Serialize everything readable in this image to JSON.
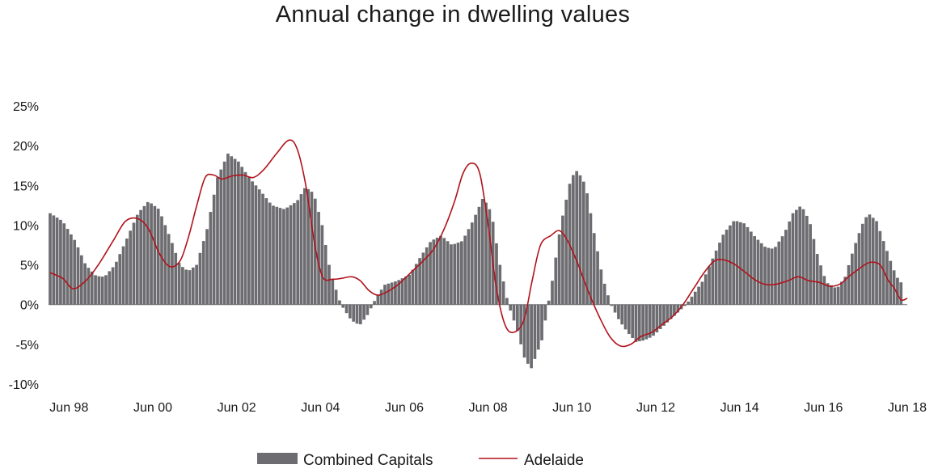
{
  "chart_data": {
    "type": "bar",
    "title": "Annual change in dwelling values",
    "xlabel": "",
    "ylabel": "",
    "ylim": [
      -10,
      25
    ],
    "y_ticks": [
      "25%",
      "20%",
      "15%",
      "10%",
      "5%",
      "0%",
      "-5%",
      "-10%"
    ],
    "y_tick_values": [
      25,
      20,
      15,
      10,
      5,
      0,
      -5,
      -10
    ],
    "x_ticks": [
      "Jun 98",
      "Jun 00",
      "Jun 02",
      "Jun 04",
      "Jun 06",
      "Jun 08",
      "Jun 10",
      "Jun 12",
      "Jun 14",
      "Jun 16",
      "Jun 18"
    ],
    "x_tick_years": [
      1998,
      2000,
      2002,
      2004,
      2006,
      2008,
      2010,
      2012,
      2014,
      2016,
      2018
    ],
    "grid": false,
    "legend_position": "bottom",
    "colors": {
      "bars": "#6d6d71",
      "line": "#b1121b"
    },
    "series": [
      {
        "name": "Combined Capitals",
        "type": "bar",
        "points": [
          [
            1998.0,
            11.5
          ],
          [
            1998.3,
            10.5
          ],
          [
            1998.6,
            8.0
          ],
          [
            1998.85,
            5.0
          ],
          [
            1999.1,
            3.6
          ],
          [
            1999.3,
            3.5
          ],
          [
            1999.55,
            5.0
          ],
          [
            1999.85,
            8.5
          ],
          [
            2000.1,
            11.5
          ],
          [
            2000.35,
            13.0
          ],
          [
            2000.6,
            12.0
          ],
          [
            2000.9,
            8.0
          ],
          [
            2001.1,
            5.0
          ],
          [
            2001.3,
            4.2
          ],
          [
            2001.5,
            5.0
          ],
          [
            2001.75,
            9.5
          ],
          [
            2002.0,
            16.0
          ],
          [
            2002.25,
            19.0
          ],
          [
            2002.5,
            18.0
          ],
          [
            2002.75,
            16.0
          ],
          [
            2003.0,
            14.5
          ],
          [
            2003.3,
            12.5
          ],
          [
            2003.6,
            12.0
          ],
          [
            2003.9,
            13.0
          ],
          [
            2004.1,
            14.8
          ],
          [
            2004.3,
            14.0
          ],
          [
            2004.5,
            10.0
          ],
          [
            2004.7,
            4.0
          ],
          [
            2004.95,
            0.0
          ],
          [
            2005.2,
            -2.0
          ],
          [
            2005.4,
            -2.6
          ],
          [
            2005.6,
            -1.2
          ],
          [
            2005.8,
            1.0
          ],
          [
            2006.0,
            2.5
          ],
          [
            2006.3,
            3.0
          ],
          [
            2006.6,
            3.8
          ],
          [
            2006.85,
            6.0
          ],
          [
            2007.1,
            8.0
          ],
          [
            2007.35,
            8.7
          ],
          [
            2007.6,
            7.5
          ],
          [
            2007.85,
            8.0
          ],
          [
            2008.1,
            10.5
          ],
          [
            2008.35,
            13.5
          ],
          [
            2008.55,
            11.5
          ],
          [
            2008.75,
            5.0
          ],
          [
            2008.95,
            0.0
          ],
          [
            2009.15,
            -3.0
          ],
          [
            2009.35,
            -7.0
          ],
          [
            2009.5,
            -8.0
          ],
          [
            2009.75,
            -4.5
          ],
          [
            2010.0,
            3.0
          ],
          [
            2010.2,
            10.0
          ],
          [
            2010.45,
            16.0
          ],
          [
            2010.6,
            16.9
          ],
          [
            2010.8,
            15.0
          ],
          [
            2011.0,
            9.0
          ],
          [
            2011.2,
            3.5
          ],
          [
            2011.4,
            0.0
          ],
          [
            2011.6,
            -2.0
          ],
          [
            2011.8,
            -3.5
          ],
          [
            2012.0,
            -4.7
          ],
          [
            2012.2,
            -4.5
          ],
          [
            2012.4,
            -4.0
          ],
          [
            2012.6,
            -3.0
          ],
          [
            2012.8,
            -2.0
          ],
          [
            2013.0,
            -1.0
          ],
          [
            2013.2,
            0.0
          ],
          [
            2013.4,
            1.5
          ],
          [
            2013.6,
            3.0
          ],
          [
            2013.85,
            6.0
          ],
          [
            2014.1,
            9.0
          ],
          [
            2014.35,
            10.6
          ],
          [
            2014.6,
            10.2
          ],
          [
            2014.85,
            8.5
          ],
          [
            2015.1,
            7.2
          ],
          [
            2015.3,
            7.0
          ],
          [
            2015.55,
            9.0
          ],
          [
            2015.75,
            11.5
          ],
          [
            2015.95,
            12.5
          ],
          [
            2016.15,
            10.5
          ],
          [
            2016.35,
            6.0
          ],
          [
            2016.55,
            2.8
          ],
          [
            2016.8,
            2.0
          ],
          [
            2017.0,
            3.5
          ],
          [
            2017.2,
            7.0
          ],
          [
            2017.4,
            10.0
          ],
          [
            2017.55,
            11.5
          ],
          [
            2017.75,
            10.5
          ],
          [
            2017.95,
            7.5
          ],
          [
            2018.15,
            4.5
          ],
          [
            2018.3,
            2.8
          ]
        ]
      },
      {
        "name": "Adelaide",
        "type": "line",
        "points": [
          [
            1998.0,
            4.0
          ],
          [
            1998.3,
            3.3
          ],
          [
            1998.55,
            2.0
          ],
          [
            1998.85,
            3.0
          ],
          [
            1999.15,
            5.0
          ],
          [
            1999.5,
            8.0
          ],
          [
            1999.8,
            10.5
          ],
          [
            2000.1,
            10.8
          ],
          [
            2000.35,
            9.5
          ],
          [
            2000.6,
            6.5
          ],
          [
            2000.85,
            4.8
          ],
          [
            2001.1,
            5.5
          ],
          [
            2001.3,
            8.5
          ],
          [
            2001.5,
            12.5
          ],
          [
            2001.7,
            16.0
          ],
          [
            2001.9,
            16.3
          ],
          [
            2002.1,
            15.8
          ],
          [
            2002.35,
            16.2
          ],
          [
            2002.6,
            16.3
          ],
          [
            2002.85,
            16.0
          ],
          [
            2003.1,
            17.0
          ],
          [
            2003.4,
            19.0
          ],
          [
            2003.7,
            20.7
          ],
          [
            2003.9,
            19.5
          ],
          [
            2004.1,
            15.0
          ],
          [
            2004.3,
            8.0
          ],
          [
            2004.5,
            3.5
          ],
          [
            2004.75,
            3.2
          ],
          [
            2004.95,
            3.3
          ],
          [
            2005.2,
            3.5
          ],
          [
            2005.4,
            3.0
          ],
          [
            2005.6,
            1.8
          ],
          [
            2005.8,
            1.2
          ],
          [
            2006.0,
            1.5
          ],
          [
            2006.3,
            2.5
          ],
          [
            2006.6,
            4.0
          ],
          [
            2006.9,
            5.5
          ],
          [
            2007.15,
            7.0
          ],
          [
            2007.4,
            9.5
          ],
          [
            2007.65,
            13.0
          ],
          [
            2007.85,
            16.5
          ],
          [
            2008.05,
            17.8
          ],
          [
            2008.25,
            16.5
          ],
          [
            2008.45,
            10.0
          ],
          [
            2008.65,
            2.0
          ],
          [
            2008.85,
            -2.5
          ],
          [
            2009.05,
            -3.5
          ],
          [
            2009.3,
            -2.0
          ],
          [
            2009.5,
            3.0
          ],
          [
            2009.7,
            7.5
          ],
          [
            2009.95,
            8.7
          ],
          [
            2010.15,
            9.3
          ],
          [
            2010.35,
            8.0
          ],
          [
            2010.6,
            5.0
          ],
          [
            2010.85,
            1.5
          ],
          [
            2011.1,
            -1.5
          ],
          [
            2011.35,
            -4.0
          ],
          [
            2011.6,
            -5.2
          ],
          [
            2011.85,
            -5.0
          ],
          [
            2012.1,
            -4.0
          ],
          [
            2012.35,
            -3.5
          ],
          [
            2012.6,
            -2.5
          ],
          [
            2012.85,
            -1.5
          ],
          [
            2013.1,
            0.0
          ],
          [
            2013.35,
            2.0
          ],
          [
            2013.6,
            4.0
          ],
          [
            2013.85,
            5.5
          ],
          [
            2014.1,
            5.6
          ],
          [
            2014.35,
            5.0
          ],
          [
            2014.6,
            4.0
          ],
          [
            2014.85,
            3.0
          ],
          [
            2015.1,
            2.5
          ],
          [
            2015.35,
            2.6
          ],
          [
            2015.6,
            3.0
          ],
          [
            2015.85,
            3.5
          ],
          [
            2016.1,
            3.0
          ],
          [
            2016.35,
            2.8
          ],
          [
            2016.6,
            2.3
          ],
          [
            2016.85,
            2.6
          ],
          [
            2017.05,
            3.5
          ],
          [
            2017.3,
            4.5
          ],
          [
            2017.55,
            5.3
          ],
          [
            2017.8,
            5.0
          ],
          [
            2018.0,
            3.0
          ],
          [
            2018.15,
            2.0
          ],
          [
            2018.3,
            0.6
          ],
          [
            2018.45,
            0.8
          ]
        ]
      }
    ]
  }
}
